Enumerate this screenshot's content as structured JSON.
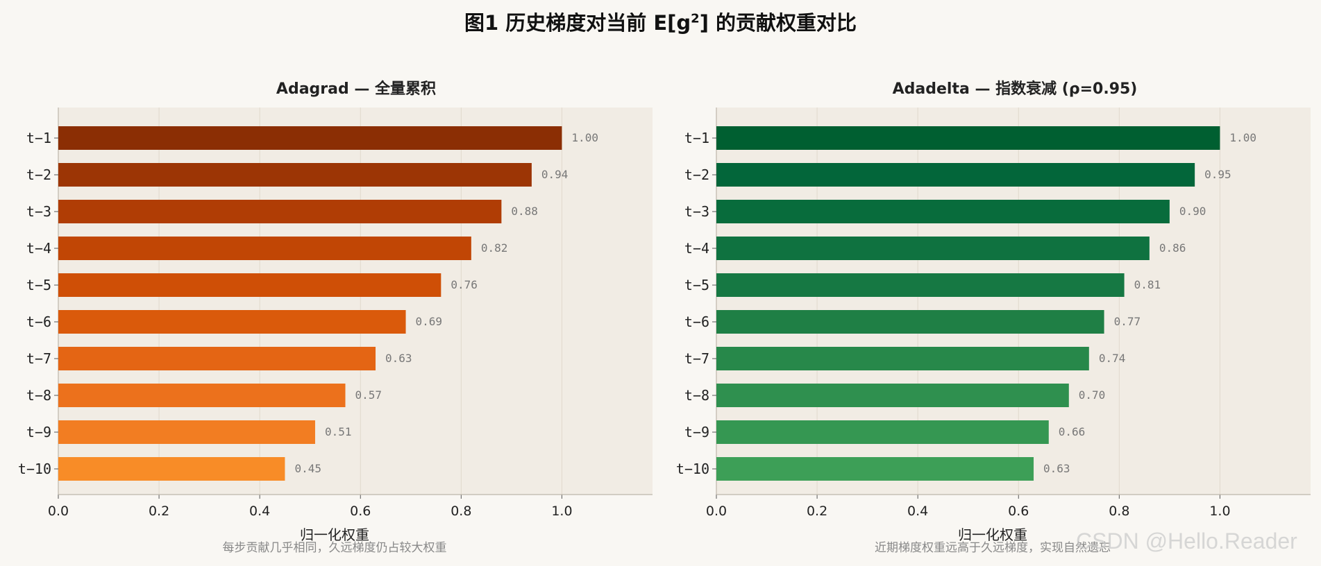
{
  "figure": {
    "title_prefix": "图1  历史梯度对当前 E[g",
    "title_sup": "2",
    "title_suffix": "] 的贡献权重对比",
    "watermark": "CSDN @Hello.Reader"
  },
  "chart_data": [
    {
      "type": "bar",
      "orientation": "horizontal",
      "title": "Adagrad — 全量累积",
      "categories": [
        "t−1",
        "t−2",
        "t−3",
        "t−4",
        "t−5",
        "t−6",
        "t−7",
        "t−8",
        "t−9",
        "t−10"
      ],
      "values": [
        1.0,
        0.94,
        0.88,
        0.82,
        0.76,
        0.69,
        0.63,
        0.57,
        0.51,
        0.45
      ],
      "value_labels": [
        "1.00",
        "0.94",
        "0.88",
        "0.82",
        "0.76",
        "0.69",
        "0.63",
        "0.57",
        "0.51",
        "0.45"
      ],
      "colors": [
        "#8b2e04",
        "#9c3505",
        "#b03d05",
        "#c14605",
        "#cf4f06",
        "#da5a0b",
        "#e46514",
        "#ec711c",
        "#f27d22",
        "#f88c27"
      ],
      "xlabel": "归一化权重",
      "subcaption": "每步贡献几乎相同，久远梯度仍占较大权重",
      "xlim": [
        0,
        1.18
      ],
      "xticks": [
        "0.0",
        "0.2",
        "0.4",
        "0.6",
        "0.8",
        "1.0"
      ],
      "grid": true
    },
    {
      "type": "bar",
      "orientation": "horizontal",
      "title": "Adadelta — 指数衰减 (ρ=0.95)",
      "categories": [
        "t−1",
        "t−2",
        "t−3",
        "t−4",
        "t−5",
        "t−6",
        "t−7",
        "t−8",
        "t−9",
        "t−10"
      ],
      "values": [
        1.0,
        0.95,
        0.9,
        0.86,
        0.81,
        0.77,
        0.74,
        0.7,
        0.66,
        0.63
      ],
      "value_labels": [
        "1.00",
        "0.95",
        "0.90",
        "0.86",
        "0.81",
        "0.77",
        "0.74",
        "0.70",
        "0.66",
        "0.63"
      ],
      "colors": [
        "#005f31",
        "#03663a",
        "#086c3c",
        "#0f7240",
        "#167843",
        "#1f7f45",
        "#27884a",
        "#2f904f",
        "#359752",
        "#3d9f57"
      ],
      "xlabel": "归一化权重",
      "subcaption": "近期梯度权重远高于久远梯度，实现自然遗忘",
      "xlim": [
        0,
        1.18
      ],
      "xticks": [
        "0.0",
        "0.2",
        "0.4",
        "0.6",
        "0.8",
        "1.0"
      ],
      "grid": true
    }
  ],
  "style": {
    "axes_bg": "#f1ece4",
    "page_bg": "#f9f7f3",
    "grid_color": "#e0d9cc"
  }
}
